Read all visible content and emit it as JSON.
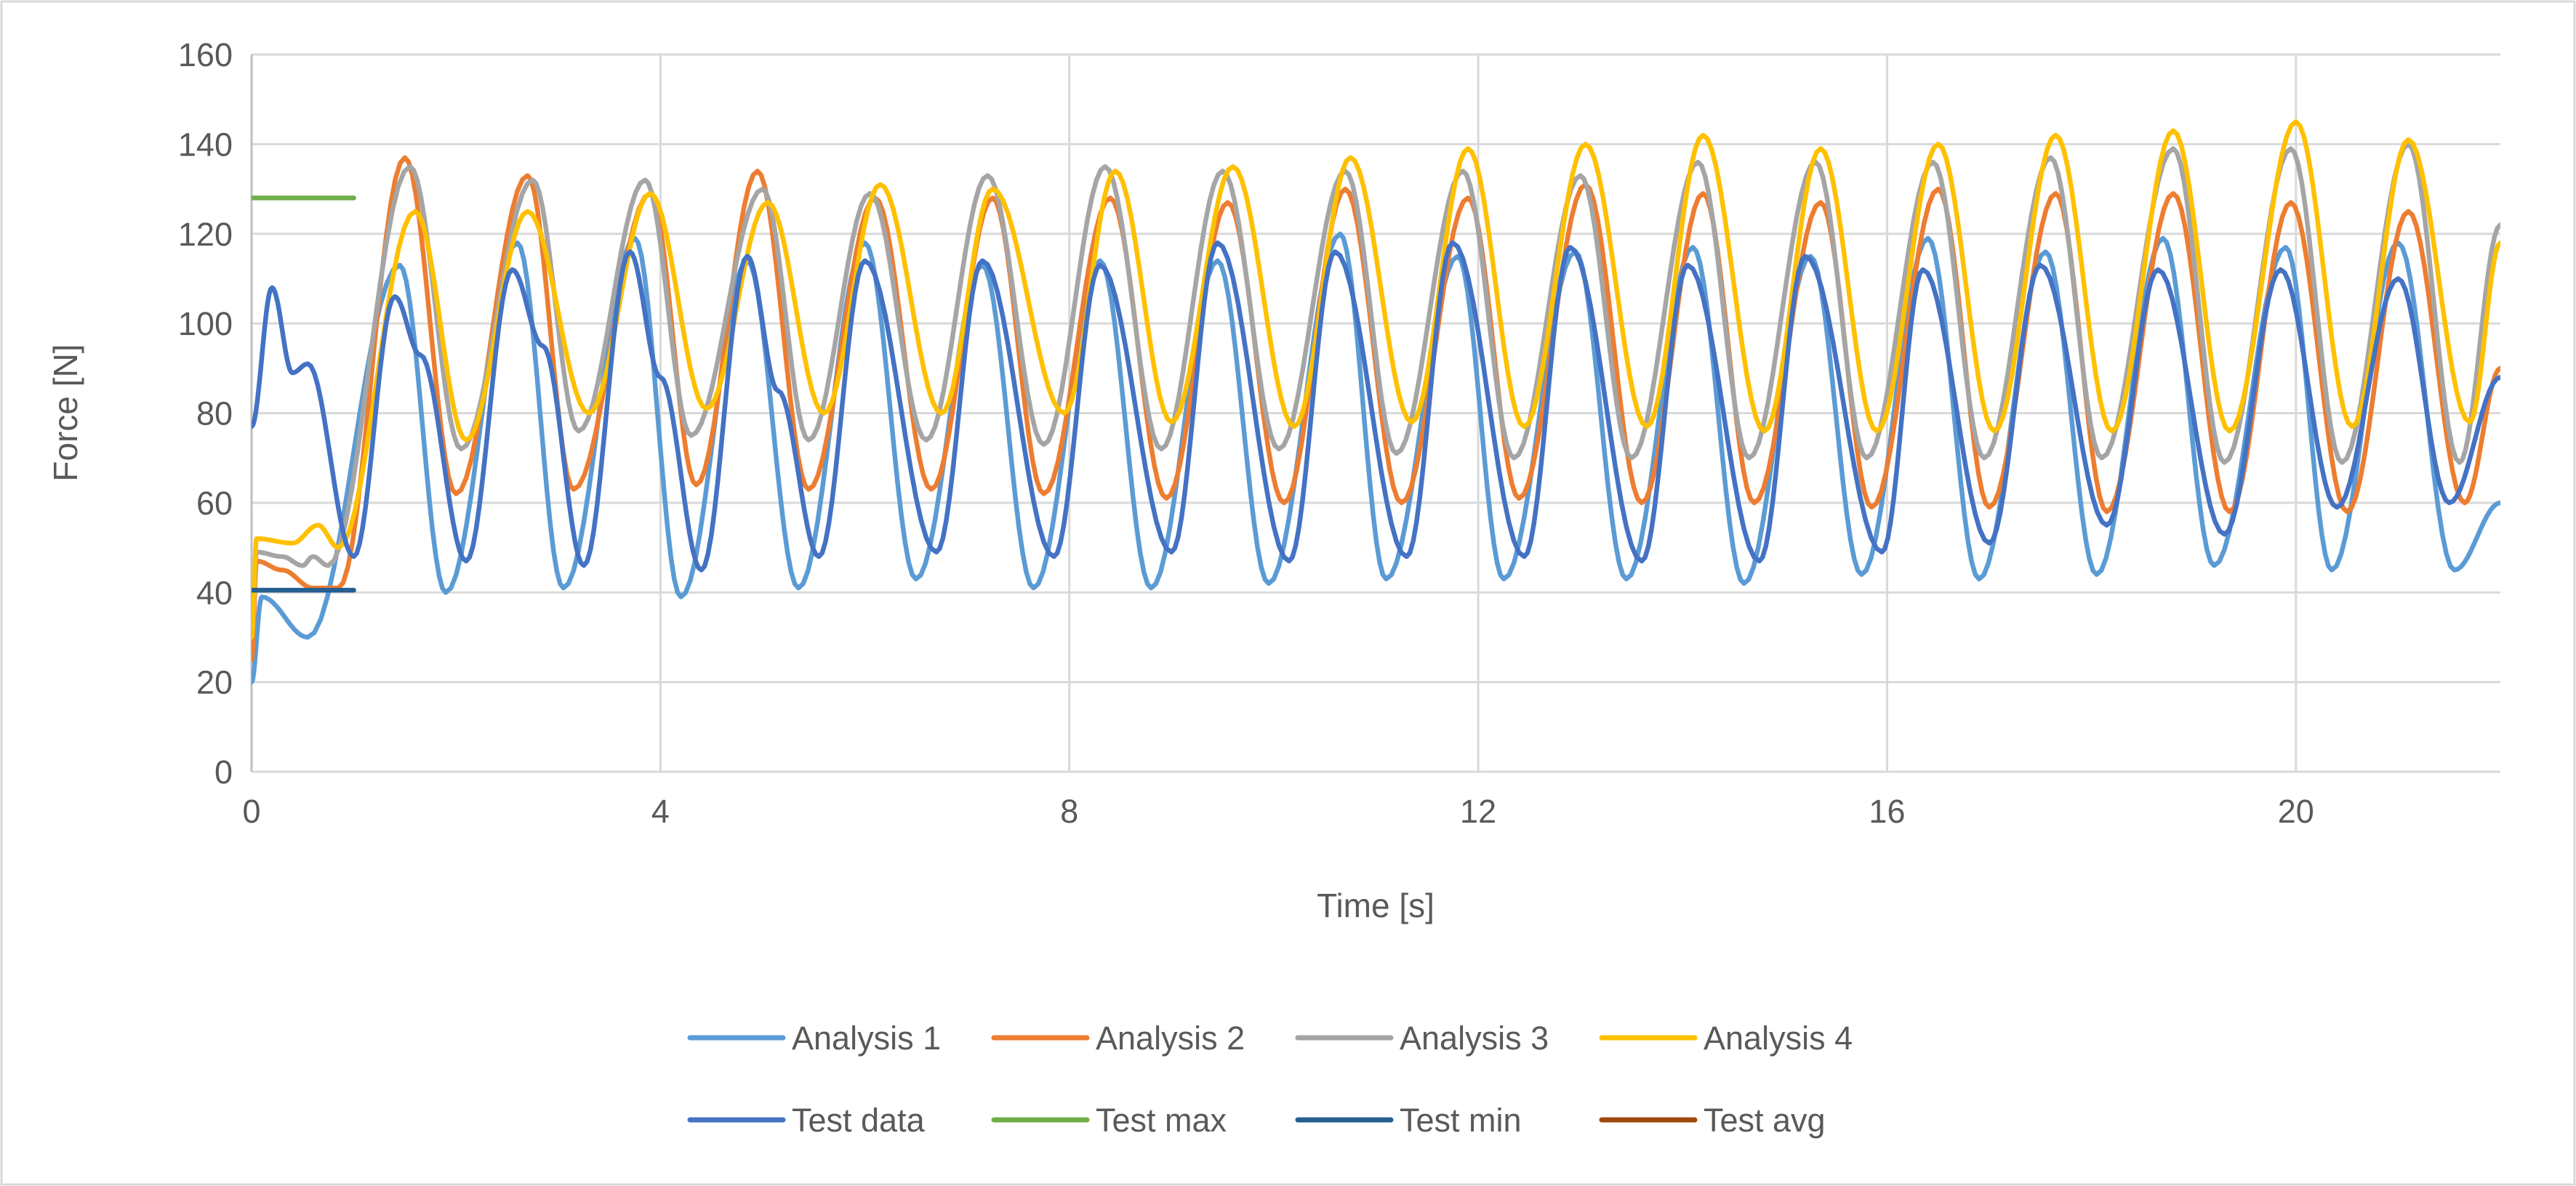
{
  "chart_data": {
    "type": "line",
    "title": "",
    "xlabel": "Time [s]",
    "ylabel": "Force [N]",
    "xlim": [
      0,
      22
    ],
    "ylim": [
      0,
      160
    ],
    "xticks": [
      0,
      4,
      8,
      12,
      16,
      20
    ],
    "yticks": [
      0,
      20,
      40,
      60,
      80,
      100,
      120,
      140,
      160
    ],
    "grid": true,
    "legend_placement": "bottom",
    "series": [
      {
        "name": "Analysis 1",
        "color": "#5B9BD5",
        "points": [
          [
            0,
            20
          ],
          [
            0.1,
            39
          ],
          [
            0.55,
            30
          ],
          [
            1.45,
            113
          ],
          [
            1.9,
            40
          ],
          [
            2.6,
            118
          ],
          [
            3.05,
            41
          ],
          [
            3.75,
            119
          ],
          [
            4.2,
            39
          ],
          [
            4.85,
            114
          ],
          [
            5.35,
            41
          ],
          [
            6.0,
            118
          ],
          [
            6.5,
            43
          ],
          [
            7.15,
            113
          ],
          [
            7.65,
            41
          ],
          [
            8.3,
            114
          ],
          [
            8.8,
            41
          ],
          [
            9.45,
            114
          ],
          [
            9.95,
            42
          ],
          [
            10.65,
            120
          ],
          [
            11.1,
            43
          ],
          [
            11.8,
            115
          ],
          [
            12.25,
            43
          ],
          [
            12.95,
            116
          ],
          [
            13.45,
            43
          ],
          [
            14.1,
            117
          ],
          [
            14.6,
            42
          ],
          [
            15.25,
            115
          ],
          [
            15.75,
            44
          ],
          [
            16.4,
            119
          ],
          [
            16.9,
            43
          ],
          [
            17.55,
            116
          ],
          [
            18.05,
            44
          ],
          [
            18.7,
            119
          ],
          [
            19.2,
            46
          ],
          [
            19.9,
            117
          ],
          [
            20.35,
            45
          ],
          [
            21.0,
            118
          ],
          [
            21.55,
            45
          ],
          [
            22,
            60
          ]
        ]
      },
      {
        "name": "Analysis 2",
        "color": "#ED7D31",
        "points": [
          [
            0,
            25
          ],
          [
            0.05,
            47
          ],
          [
            0.3,
            45
          ],
          [
            0.6,
            41
          ],
          [
            0.85,
            41
          ],
          [
            1.5,
            137
          ],
          [
            2.0,
            62
          ],
          [
            2.7,
            133
          ],
          [
            3.15,
            63
          ],
          [
            3.9,
            129
          ],
          [
            4.35,
            64
          ],
          [
            4.95,
            134
          ],
          [
            5.45,
            63
          ],
          [
            6.1,
            128
          ],
          [
            6.65,
            63
          ],
          [
            7.25,
            128
          ],
          [
            7.75,
            62
          ],
          [
            8.4,
            128
          ],
          [
            8.95,
            61
          ],
          [
            9.55,
            127
          ],
          [
            10.1,
            60
          ],
          [
            10.7,
            130
          ],
          [
            11.25,
            60
          ],
          [
            11.9,
            128
          ],
          [
            12.4,
            61
          ],
          [
            13.05,
            131
          ],
          [
            13.6,
            60
          ],
          [
            14.2,
            129
          ],
          [
            14.7,
            60
          ],
          [
            15.35,
            127
          ],
          [
            15.85,
            59
          ],
          [
            16.5,
            130
          ],
          [
            17.0,
            59
          ],
          [
            17.65,
            129
          ],
          [
            18.15,
            58
          ],
          [
            18.8,
            129
          ],
          [
            19.35,
            58
          ],
          [
            19.95,
            127
          ],
          [
            20.5,
            58
          ],
          [
            21.1,
            125
          ],
          [
            21.65,
            60
          ],
          [
            22,
            90
          ]
        ]
      },
      {
        "name": "Analysis 3",
        "color": "#A5A5A5",
        "points": [
          [
            0,
            30
          ],
          [
            0.05,
            49
          ],
          [
            0.3,
            48
          ],
          [
            0.5,
            46
          ],
          [
            0.6,
            48
          ],
          [
            0.75,
            46
          ],
          [
            1.55,
            135
          ],
          [
            2.05,
            72
          ],
          [
            2.75,
            132
          ],
          [
            3.2,
            76
          ],
          [
            3.85,
            132
          ],
          [
            4.3,
            75
          ],
          [
            5.0,
            130
          ],
          [
            5.45,
            74
          ],
          [
            6.05,
            129
          ],
          [
            6.6,
            74
          ],
          [
            7.2,
            133
          ],
          [
            7.75,
            73
          ],
          [
            8.35,
            135
          ],
          [
            8.9,
            72
          ],
          [
            9.5,
            134
          ],
          [
            10.05,
            72
          ],
          [
            10.7,
            134
          ],
          [
            11.2,
            71
          ],
          [
            11.85,
            134
          ],
          [
            12.35,
            70
          ],
          [
            13.0,
            133
          ],
          [
            13.5,
            70
          ],
          [
            14.15,
            136
          ],
          [
            14.65,
            70
          ],
          [
            15.3,
            136
          ],
          [
            15.8,
            70
          ],
          [
            16.45,
            136
          ],
          [
            16.95,
            70
          ],
          [
            17.6,
            137
          ],
          [
            18.1,
            70
          ],
          [
            18.8,
            139
          ],
          [
            19.3,
            69
          ],
          [
            19.95,
            139
          ],
          [
            20.45,
            69
          ],
          [
            21.1,
            140
          ],
          [
            21.6,
            69
          ],
          [
            22,
            122
          ]
        ]
      },
      {
        "name": "Analysis 4",
        "color": "#FFC000",
        "points": [
          [
            0,
            30
          ],
          [
            0.05,
            52
          ],
          [
            0.4,
            51
          ],
          [
            0.65,
            55
          ],
          [
            0.85,
            50
          ],
          [
            1.6,
            125
          ],
          [
            2.1,
            74
          ],
          [
            2.7,
            125
          ],
          [
            3.3,
            80
          ],
          [
            3.9,
            129
          ],
          [
            4.45,
            81
          ],
          [
            5.05,
            127
          ],
          [
            5.6,
            80
          ],
          [
            6.15,
            131
          ],
          [
            6.75,
            80
          ],
          [
            7.25,
            130
          ],
          [
            7.95,
            80
          ],
          [
            8.45,
            134
          ],
          [
            9.0,
            78
          ],
          [
            9.6,
            135
          ],
          [
            10.2,
            77
          ],
          [
            10.75,
            137
          ],
          [
            11.35,
            78
          ],
          [
            11.9,
            139
          ],
          [
            12.45,
            77
          ],
          [
            13.05,
            140
          ],
          [
            13.65,
            77
          ],
          [
            14.2,
            142
          ],
          [
            14.8,
            76
          ],
          [
            15.35,
            139
          ],
          [
            15.9,
            76
          ],
          [
            16.5,
            140
          ],
          [
            17.05,
            76
          ],
          [
            17.65,
            142
          ],
          [
            18.2,
            76
          ],
          [
            18.8,
            143
          ],
          [
            19.35,
            76
          ],
          [
            20.0,
            145
          ],
          [
            20.55,
            77
          ],
          [
            21.1,
            141
          ],
          [
            21.7,
            78
          ],
          [
            22,
            118
          ]
        ]
      },
      {
        "name": "Test data",
        "color": "#4472C4",
        "points": [
          [
            0,
            77
          ],
          [
            0.2,
            108
          ],
          [
            0.4,
            89
          ],
          [
            0.55,
            91
          ],
          [
            1.0,
            48
          ],
          [
            1.4,
            106
          ],
          [
            1.65,
            93
          ],
          [
            2.1,
            47
          ],
          [
            2.55,
            112
          ],
          [
            2.85,
            95
          ],
          [
            3.25,
            46
          ],
          [
            3.7,
            116
          ],
          [
            4.0,
            88
          ],
          [
            4.4,
            45
          ],
          [
            4.85,
            115
          ],
          [
            5.15,
            85
          ],
          [
            5.55,
            48
          ],
          [
            6.0,
            114
          ],
          [
            6.7,
            49
          ],
          [
            7.15,
            114
          ],
          [
            7.85,
            48
          ],
          [
            8.3,
            113
          ],
          [
            9.0,
            49
          ],
          [
            9.45,
            118
          ],
          [
            10.15,
            47
          ],
          [
            10.6,
            116
          ],
          [
            11.3,
            48
          ],
          [
            11.75,
            118
          ],
          [
            12.45,
            48
          ],
          [
            12.9,
            117
          ],
          [
            13.6,
            47
          ],
          [
            14.05,
            113
          ],
          [
            14.75,
            47
          ],
          [
            15.2,
            115
          ],
          [
            15.95,
            49
          ],
          [
            16.35,
            112
          ],
          [
            17.0,
            51
          ],
          [
            17.5,
            113
          ],
          [
            18.15,
            55
          ],
          [
            18.65,
            112
          ],
          [
            19.3,
            53
          ],
          [
            19.85,
            112
          ],
          [
            20.4,
            59
          ],
          [
            21.0,
            110
          ],
          [
            21.5,
            60
          ],
          [
            22,
            88
          ]
        ]
      },
      {
        "name": "Test max",
        "color": "#70AD47",
        "points": [
          [
            0,
            128
          ],
          [
            1,
            128
          ]
        ]
      },
      {
        "name": "Test min",
        "color": "#255E91",
        "points": [
          [
            0,
            40.5
          ],
          [
            1,
            40.5
          ]
        ]
      },
      {
        "name": "Test avg",
        "color": "#9E480E",
        "points": []
      }
    ]
  }
}
